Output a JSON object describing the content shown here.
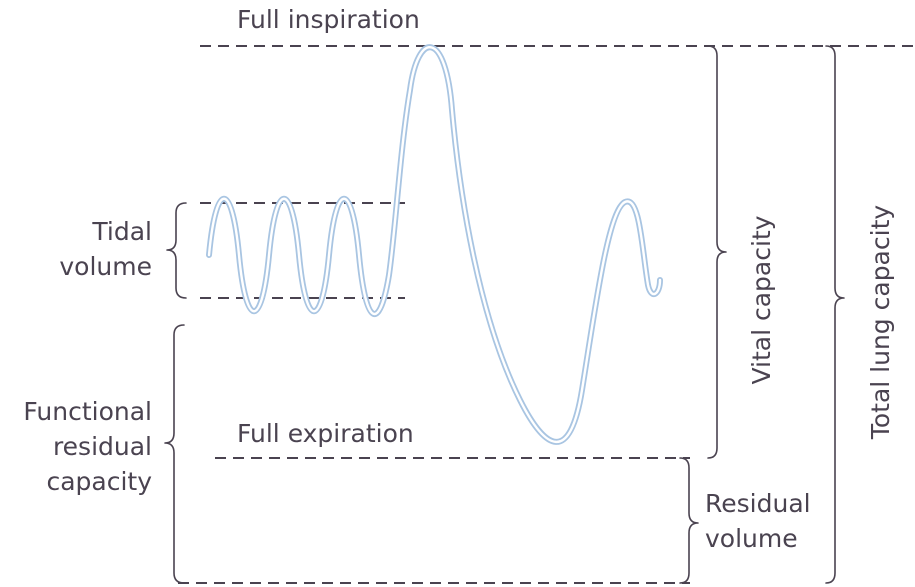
{
  "labels": {
    "full_inspiration": "Full inspiration",
    "full_expiration": "Full expiration",
    "tidal_volume": [
      "Tidal",
      "volume"
    ],
    "functional_residual_capacity": [
      "Functional",
      "residual",
      "capacity"
    ],
    "residual_volume": [
      "Residual",
      "volume"
    ],
    "vital_capacity": "Vital capacity",
    "total_lung_capacity": "Total lung capacity"
  },
  "colors": {
    "ink": "#4a4350",
    "trace": "#a9c5e2",
    "background": "#ffffff"
  }
}
